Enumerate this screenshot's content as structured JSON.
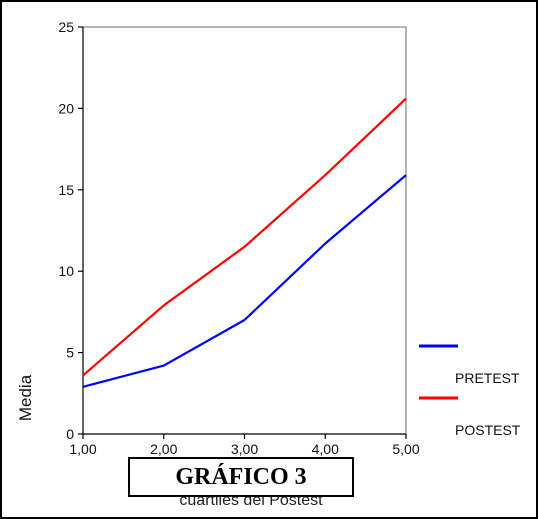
{
  "figure_title": "GRÁFICO 3",
  "chart_data": {
    "type": "line",
    "xlabel": "cuartiles del Postest",
    "ylabel": "Media",
    "x": [
      1,
      2,
      3,
      4,
      5
    ],
    "xtick_labels": [
      "1,00",
      "2,00",
      "3,00",
      "4,00",
      "5,00"
    ],
    "ytick_labels": [
      "0",
      "5",
      "10",
      "15",
      "20",
      "25"
    ],
    "ylim": [
      0,
      25
    ],
    "yticks": [
      0,
      5,
      10,
      15,
      20,
      25
    ],
    "grid": false,
    "legend_position": "right",
    "series": [
      {
        "name": "PRETEST",
        "color": "#0000ff",
        "values": [
          2.9,
          4.2,
          7.0,
          11.7,
          15.9
        ]
      },
      {
        "name": "POSTEST",
        "color": "#ff0000",
        "values": [
          3.6,
          7.9,
          11.5,
          15.9,
          20.6
        ]
      }
    ]
  }
}
